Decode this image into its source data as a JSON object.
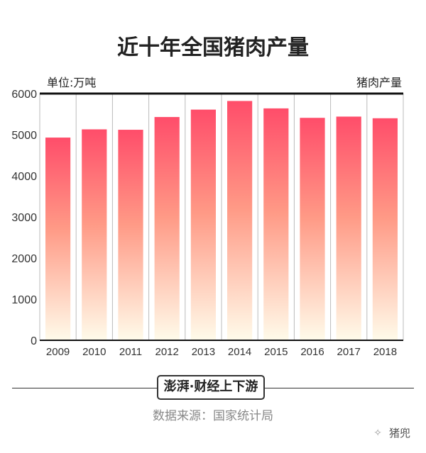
{
  "chart_data": {
    "type": "bar",
    "title": "近十年全国猪肉产量",
    "unit_label": "单位:万吨",
    "legend": "猪肉产量",
    "categories": [
      "2009",
      "2010",
      "2011",
      "2012",
      "2013",
      "2014",
      "2015",
      "2016",
      "2017",
      "2018"
    ],
    "series": [
      {
        "name": "猪肉产量",
        "values": [
          4930,
          5130,
          5120,
          5430,
          5610,
          5820,
          5640,
          5410,
          5440,
          5400
        ]
      }
    ],
    "yticks": [
      0,
      1000,
      2000,
      3000,
      4000,
      5000,
      6000
    ],
    "ylim": [
      0,
      6000
    ],
    "grid": "vertical",
    "colors": {
      "bar_top": "#ff4d6a",
      "bar_mid": "#ff9a86",
      "bar_bottom": "#fffbea"
    }
  },
  "footer": {
    "brand": "澎湃·财经上下游",
    "source": "数据来源：国家统计局",
    "watermark": "猪兜"
  }
}
